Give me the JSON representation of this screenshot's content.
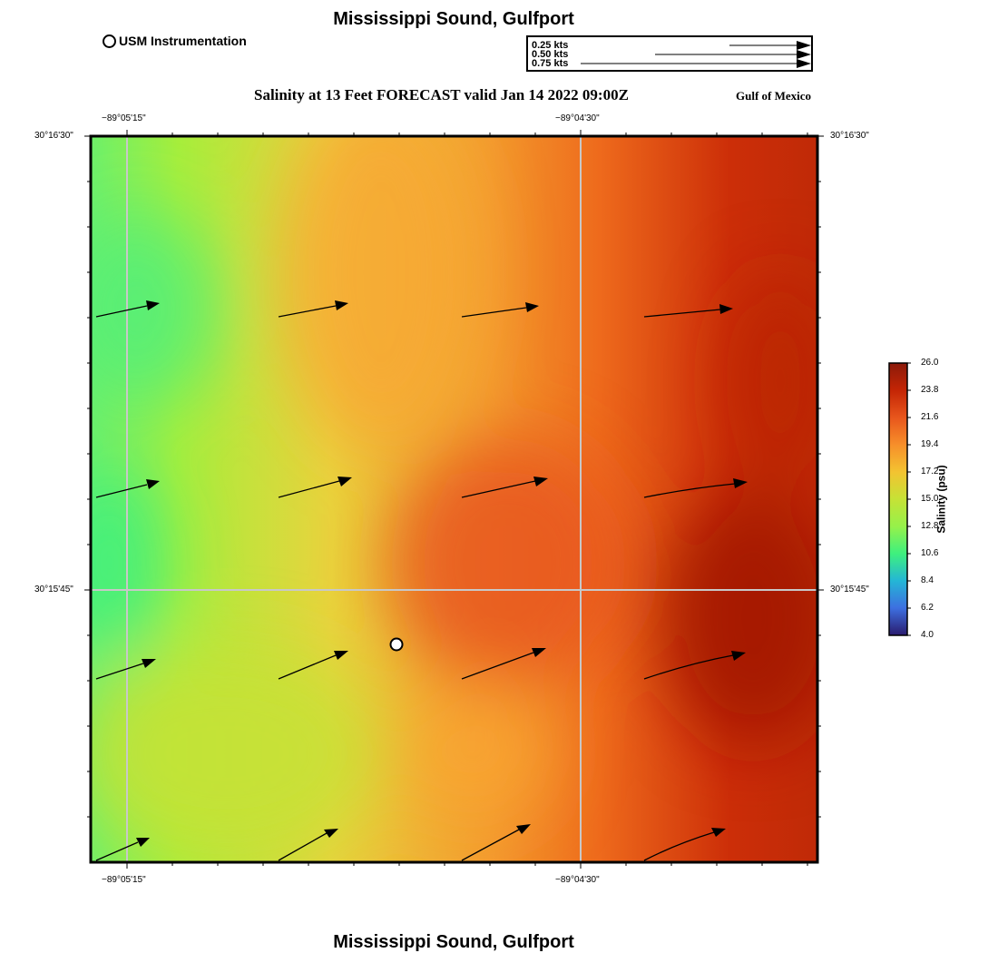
{
  "title_top": "Mississippi Sound, Gulfport",
  "title_bottom": "Mississippi Sound, Gulfport",
  "legend_usm": "USM Instrumentation",
  "subtitle": "Salinity at 13 Feet FORECAST valid Jan 14 2022 09:00Z",
  "region": "Gulf of Mexico",
  "speed_legend": [
    "0.25 kts",
    "0.50 kts",
    "0.75 kts"
  ],
  "lon_labels": [
    "−89°05'15\"",
    "−89°04'30\""
  ],
  "lat_labels": [
    "30°16'30\"",
    "30°15'45\""
  ],
  "colorbar": {
    "title": "Salinity (psu)",
    "ticks": [
      "26.0",
      "23.8",
      "21.6",
      "19.4",
      "17.2",
      "15.0",
      "12.8",
      "10.6",
      "8.4",
      "6.2",
      "4.0"
    ],
    "colors": [
      "#8b1a0a",
      "#c42505",
      "#e8561c",
      "#f78f2a",
      "#f3c331",
      "#c6e236",
      "#96f14a",
      "#3ef07e",
      "#24b6d6",
      "#3d6fe0",
      "#2a1b6e"
    ]
  },
  "field_colors": {
    "green": "#4ff07a",
    "lime": "#a7ee3c",
    "yellow": "#e9d33d",
    "orange": "#f8a632",
    "dark_orange": "#ee6a1c",
    "red": "#cc2e08",
    "dark_red": "#a31505"
  }
}
